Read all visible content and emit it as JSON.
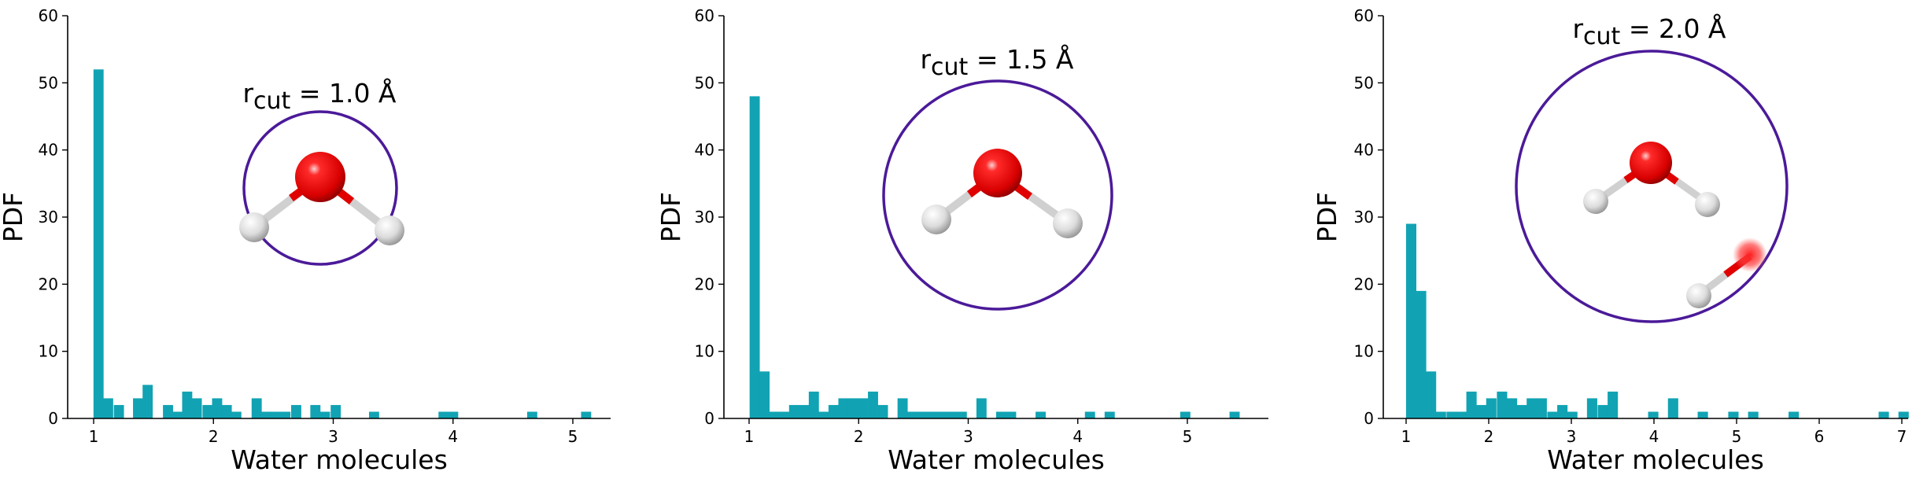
{
  "colors": {
    "bar": "#11a3b3",
    "circle": "#4b1a99",
    "oxygen": "#e00000",
    "hydrogen": "#e2e2e2",
    "bond": "#cfcfcf"
  },
  "molecule_icons": [
    "water-molecule-icon",
    "water-molecule-icon",
    "water-molecule-with-neighbor-icon"
  ],
  "chart_data": [
    {
      "type": "bar",
      "histogram": true,
      "annotation": {
        "prefix": "r",
        "subscript": "cut",
        "suffix": " = 1.0 Å"
      },
      "xlabel": "Water molecules",
      "ylabel": "PDF",
      "xlim": [
        0.88,
        5.2
      ],
      "ylim": [
        0,
        60
      ],
      "xticks": [
        1,
        2,
        3,
        4,
        5
      ],
      "xtick_labels": [
        "1",
        "2",
        "3",
        "4",
        "5"
      ],
      "yticks": [
        0,
        10,
        20,
        30,
        40,
        50,
        60
      ],
      "ytick_labels": [
        "0",
        "10",
        "20",
        "30",
        "40",
        "50",
        "60"
      ],
      "bin_width": 0.0825,
      "x": [
        1.04,
        1.12,
        1.21,
        1.37,
        1.45,
        1.62,
        1.7,
        1.78,
        1.86,
        1.95,
        2.03,
        2.11,
        2.19,
        2.36,
        2.44,
        2.52,
        2.6,
        2.69,
        2.85,
        2.93,
        3.02,
        3.34,
        3.92,
        4.0,
        4.66,
        5.11
      ],
      "values": [
        52,
        3,
        2,
        3,
        5,
        2,
        1,
        4,
        3,
        2,
        3,
        2,
        1,
        3,
        1,
        1,
        1,
        2,
        2,
        1,
        2,
        1,
        1,
        1,
        1,
        1
      ]
    },
    {
      "type": "bar",
      "histogram": true,
      "annotation": {
        "prefix": "r",
        "subscript": "cut",
        "suffix": " = 1.5 Å"
      },
      "xlabel": "Water molecules",
      "ylabel": "PDF",
      "xlim": [
        0.88,
        5.6
      ],
      "ylim": [
        0,
        60
      ],
      "xticks": [
        1,
        2,
        3,
        4,
        5
      ],
      "xtick_labels": [
        "1",
        "2",
        "3",
        "4",
        "5"
      ],
      "yticks": [
        0,
        10,
        20,
        30,
        40,
        50,
        60
      ],
      "ytick_labels": [
        "0",
        "10",
        "20",
        "30",
        "40",
        "50",
        "60"
      ],
      "bin_width": 0.0904,
      "x": [
        1.05,
        1.14,
        1.23,
        1.32,
        1.41,
        1.5,
        1.59,
        1.68,
        1.77,
        1.86,
        1.95,
        2.04,
        2.13,
        2.22,
        2.4,
        2.49,
        2.58,
        2.67,
        2.76,
        2.85,
        2.94,
        3.12,
        3.3,
        3.39,
        3.66,
        4.11,
        4.29,
        4.98,
        5.43
      ],
      "values": [
        48,
        7,
        1,
        1,
        2,
        2,
        4,
        1,
        2,
        3,
        3,
        3,
        4,
        2,
        3,
        1,
        1,
        1,
        1,
        1,
        1,
        3,
        1,
        1,
        1,
        1,
        1,
        1,
        1
      ]
    },
    {
      "type": "bar",
      "histogram": true,
      "annotation": {
        "prefix": "r",
        "subscript": "cut",
        "suffix": " = 2.0 Å"
      },
      "xlabel": "Water molecules",
      "ylabel": "PDF",
      "xlim": [
        0.8,
        7.1
      ],
      "ylim": [
        0,
        60
      ],
      "xticks": [
        1,
        2,
        3,
        4,
        5,
        6,
        7
      ],
      "xtick_labels": [
        "1",
        "2",
        "3",
        "4",
        "5",
        "6",
        "7"
      ],
      "yticks": [
        0,
        10,
        20,
        30,
        40,
        50,
        60
      ],
      "ytick_labels": [
        "0",
        "10",
        "20",
        "30",
        "40",
        "50",
        "60"
      ],
      "bin_width": 0.1218,
      "x": [
        1.06,
        1.18,
        1.3,
        1.42,
        1.55,
        1.67,
        1.79,
        1.91,
        2.03,
        2.16,
        2.28,
        2.4,
        2.52,
        2.64,
        2.77,
        2.89,
        3.01,
        3.25,
        3.38,
        3.5,
        3.99,
        4.23,
        4.59,
        4.96,
        5.2,
        5.69,
        6.78,
        7.02
      ],
      "values": [
        29,
        19,
        7,
        1,
        1,
        1,
        4,
        2,
        3,
        4,
        3,
        2,
        3,
        3,
        1,
        2,
        1,
        3,
        2,
        4,
        1,
        3,
        1,
        1,
        1,
        1,
        1,
        1
      ]
    }
  ]
}
